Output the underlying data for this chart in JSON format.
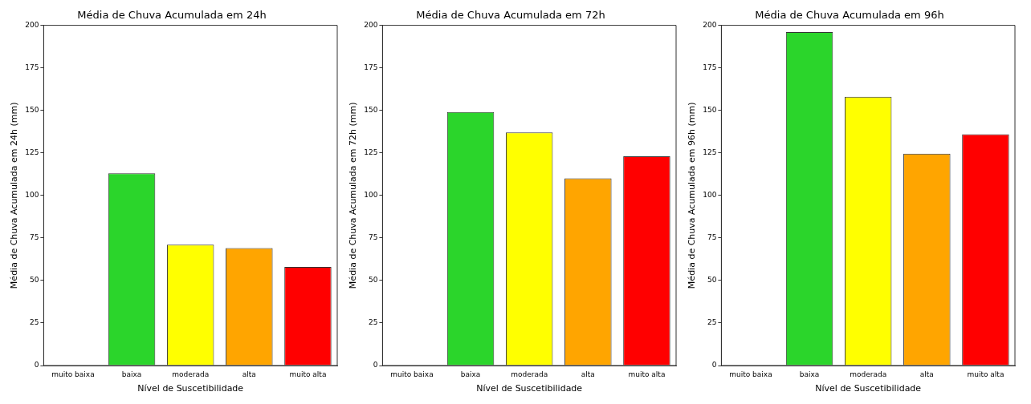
{
  "chart_data": [
    {
      "type": "bar",
      "title": "Média de Chuva Acumulada em 24h",
      "xlabel": "Nível de Suscetibilidade",
      "ylabel": "Média de Chuva Acumulada em 24h (mm)",
      "categories": [
        "muito baixa",
        "baixa",
        "moderada",
        "alta",
        "muito alta"
      ],
      "values": [
        null,
        113,
        71,
        69,
        58
      ],
      "colors": [
        null,
        "#2bd52b",
        "#ffff00",
        "#ffa500",
        "#ff0000"
      ],
      "ylim": [
        0,
        200
      ],
      "yticks": [
        0,
        25,
        50,
        75,
        100,
        125,
        150,
        175,
        200
      ],
      "grid": false
    },
    {
      "type": "bar",
      "title": "Média de Chuva Acumulada em 72h",
      "xlabel": "Nível de Suscetibilidade",
      "ylabel": "Média de Chuva Acumulada em 72h (mm)",
      "categories": [
        "muito baixa",
        "baixa",
        "moderada",
        "alta",
        "muito alta"
      ],
      "values": [
        null,
        149,
        137,
        110,
        123
      ],
      "colors": [
        null,
        "#2bd52b",
        "#ffff00",
        "#ffa500",
        "#ff0000"
      ],
      "ylim": [
        0,
        200
      ],
      "yticks": [
        0,
        25,
        50,
        75,
        100,
        125,
        150,
        175,
        200
      ],
      "grid": false
    },
    {
      "type": "bar",
      "title": "Média de Chuva Acumulada em 96h",
      "xlabel": "Nível de Suscetibilidade",
      "ylabel": "Média de Chuva Acumulada em 96h (mm)",
      "categories": [
        "muito baixa",
        "baixa",
        "moderada",
        "alta",
        "muito alta"
      ],
      "values": [
        null,
        196,
        158,
        124.5,
        136
      ],
      "colors": [
        null,
        "#2bd52b",
        "#ffff00",
        "#ffa500",
        "#ff0000"
      ],
      "ylim": [
        0,
        200
      ],
      "yticks": [
        0,
        25,
        50,
        75,
        100,
        125,
        150,
        175,
        200
      ],
      "grid": false
    }
  ]
}
